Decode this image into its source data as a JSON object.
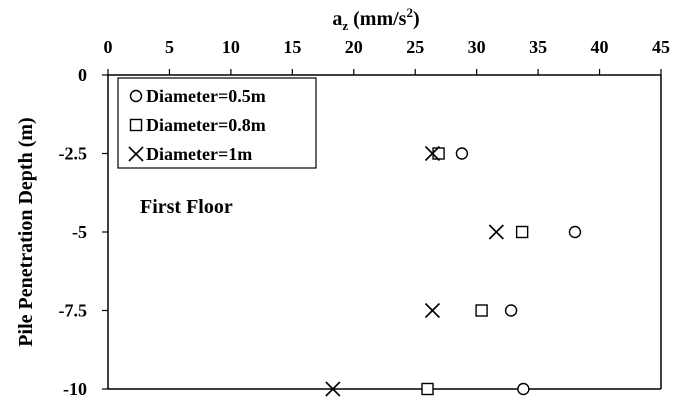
{
  "chart_data": {
    "type": "scatter",
    "title": "",
    "xlabel": {
      "main": "a",
      "sub": "z",
      "pre": " (mm/s",
      "sup": "2",
      "post": ")"
    },
    "ylabel": "Pile Penetration Depth (m)",
    "xlim": [
      0,
      45
    ],
    "ylim": [
      -10,
      0
    ],
    "x_ticks": [
      0,
      5,
      10,
      15,
      20,
      25,
      30,
      35,
      40,
      45
    ],
    "y_ticks": [
      0,
      -2.5,
      -5,
      -7.5,
      -10
    ],
    "y_tick_labels": [
      "0",
      "-2.5",
      "-5",
      "-7.5",
      "-10"
    ],
    "x_axis_position": "top",
    "grid": false,
    "legend_position": "top-left",
    "annotation": "First Floor",
    "series": [
      {
        "name": "Diameter=0.5m",
        "marker": "circle",
        "x": [
          28.8,
          38.0,
          32.8,
          33.8
        ],
        "y": [
          -2.5,
          -5,
          -7.5,
          -10
        ]
      },
      {
        "name": "Diameter=0.8m",
        "marker": "square",
        "x": [
          26.9,
          33.7,
          30.4,
          26.0
        ],
        "y": [
          -2.5,
          -5,
          -7.5,
          -10
        ]
      },
      {
        "name": "Diameter=1m",
        "marker": "x",
        "x": [
          26.4,
          31.6,
          26.4,
          18.3
        ],
        "y": [
          -2.5,
          -5,
          -7.5,
          -10
        ]
      }
    ]
  }
}
